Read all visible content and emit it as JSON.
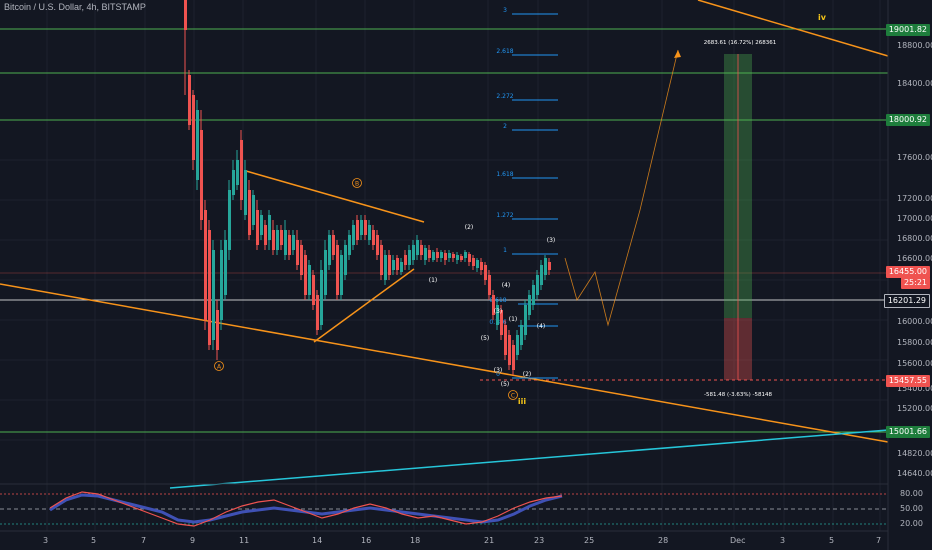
{
  "header": {
    "title": "Bitcoin / U.S. Dollar, 4h, BITSTAMP"
  },
  "price_axis": {
    "ticks": [
      "18800.00",
      "18400.00",
      "17600.00",
      "17200.00",
      "17000.00",
      "16800.00",
      "16600.00",
      "16000.00",
      "15800.00",
      "15600.00",
      "15400.00",
      "15200.00",
      "14820.00",
      "14640.00"
    ],
    "tags": [
      {
        "label": "19001.82",
        "color": "#1e7d3c"
      },
      {
        "label": "18000.92",
        "color": "#1e7d3c"
      },
      {
        "label": "16455.00",
        "color": "#ef5350"
      },
      {
        "label": "25:21",
        "color": "#ef5350"
      },
      {
        "label": "16201.29",
        "color": "#131722"
      },
      {
        "label": "15457.55",
        "color": "#ef5350"
      },
      {
        "label": "15001.66",
        "color": "#1e7d3c"
      }
    ]
  },
  "time_axis": {
    "labels": [
      "3",
      "5",
      "7",
      "9",
      "11",
      "14",
      "16",
      "18",
      "21",
      "23",
      "25",
      "28",
      "Dec",
      "3",
      "5",
      "7"
    ]
  },
  "fib_levels": [
    "3",
    "2.618",
    "2.272",
    "2",
    "1.618",
    "1.272",
    "1",
    "0.618",
    "0.786",
    "0"
  ],
  "wave_labels": [
    "(2)",
    "(1)",
    "(4)",
    "(3)",
    "(1)",
    "(5)",
    "(3)",
    "(4)",
    "(2)",
    "(5)",
    "(3)"
  ],
  "circled_labels": [
    "A",
    "B",
    "C"
  ],
  "roman_labels": [
    "iv",
    "iii"
  ],
  "measure": {
    "upper": "2683.61 (16.72%) 268361",
    "lower": "-581.48 (-3.63%) -58148"
  },
  "indicator": {
    "levels": [
      "80.00",
      "50.00",
      "20.00"
    ]
  },
  "colors": {
    "bg": "#131722",
    "up": "#26a69a",
    "down": "#ef5350",
    "orange": "#f7931a",
    "fib": "#2196f3",
    "green_line": "#4caf50",
    "cyan": "#26c6da"
  }
}
